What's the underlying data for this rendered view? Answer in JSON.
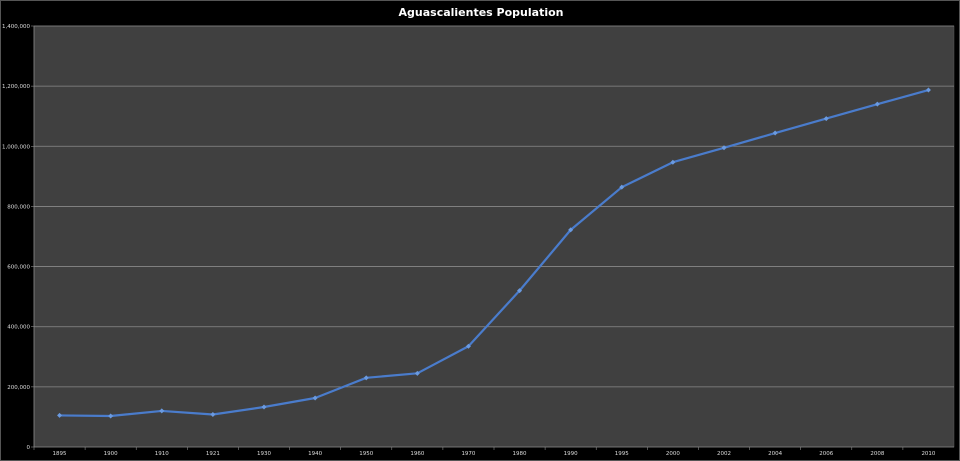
{
  "chart_data": {
    "type": "line",
    "title": "Aguascalientes Population",
    "xlabel": "",
    "ylabel": "",
    "categories": [
      "1895",
      "1900",
      "1910",
      "1921",
      "1930",
      "1940",
      "1950",
      "1960",
      "1970",
      "1980",
      "1990",
      "1995",
      "2000",
      "2002",
      "2004",
      "2006",
      "2008",
      "2010"
    ],
    "series": [
      {
        "values": [
          105000,
          103000,
          120000,
          108000,
          133000,
          163000,
          230000,
          245000,
          335000,
          520000,
          722000,
          864000,
          947000,
          995000,
          1044000,
          1092000,
          1140000,
          1187000
        ]
      }
    ],
    "ylim": [
      0,
      1400000
    ],
    "yticks": [
      0,
      200000,
      400000,
      600000,
      800000,
      1000000,
      1200000,
      1400000
    ],
    "ytick_labels": [
      "0",
      "200,000",
      "400,000",
      "600,000",
      "800,000",
      "1,000,000",
      "1,200,000",
      "1,400,000"
    ],
    "grid": true,
    "legend": "none",
    "colors": {
      "line": "#4a7ccc",
      "plot_background": "#404040",
      "background": "#000000",
      "grid": "#8a8a8a"
    }
  }
}
